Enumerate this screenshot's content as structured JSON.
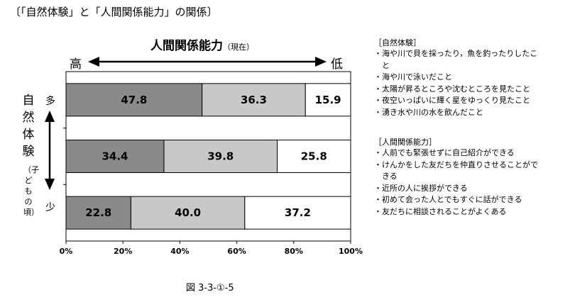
{
  "page_title": "〔「自然体験」と「人間関係能力」の関係〕",
  "top_axis": {
    "title": "人間関係能力",
    "subtitle": "（現在）",
    "high": "高",
    "low": "低"
  },
  "left_axis": {
    "title": "自然体験",
    "subtitle": "（子どもの頃）",
    "top_category": "多",
    "bottom_category": "少"
  },
  "legend_nature": {
    "heading": "［自然体験］",
    "items": [
      "・海や川で貝を採ったり，魚を釣ったりしたこ",
      "　と",
      "・海や川で泳いだこと",
      "・太陽が昇るところや沈むところを見たこと",
      "・夜空いっぱいに輝く星をゆっくり見たこと",
      "・湧き水や川の水を飲んだこと"
    ]
  },
  "legend_human": {
    "heading": "［人間関係能力］",
    "items": [
      "・人前でも緊張せずに自己紹介ができる",
      "・けんかをした友だちを仲直りさせることがで",
      "　きる",
      "・近所の人に挨拶ができる",
      "・初めて会った人とでもすぐに話ができる",
      "・友だちに相談されることがよくある"
    ]
  },
  "figure_caption": "図 3-3-①-5",
  "colors": {
    "high": "#8a8a8a",
    "mid": "#c8c8c8",
    "low": "#ffffff",
    "border": "#000000"
  },
  "chart_data": {
    "type": "bar",
    "orientation": "horizontal",
    "stacked": true,
    "categories": [
      "多",
      "",
      "少"
    ],
    "series": [
      {
        "values": [
          47.8,
          34.4,
          22.8
        ]
      },
      {
        "values": [
          36.3,
          39.8,
          40.0
        ]
      },
      {
        "values": [
          15.9,
          25.8,
          37.2
        ]
      }
    ],
    "value_labels": [
      [
        "47.8",
        "36.3",
        "15.9"
      ],
      [
        "34.4",
        "39.8",
        "25.8"
      ],
      [
        "22.8",
        "40.0",
        "37.2"
      ]
    ],
    "xlim": [
      0,
      100
    ],
    "x_ticks": [
      "0%",
      "20%",
      "40%",
      "60%",
      "80%",
      "100%"
    ],
    "grid": false,
    "legend": "right"
  }
}
